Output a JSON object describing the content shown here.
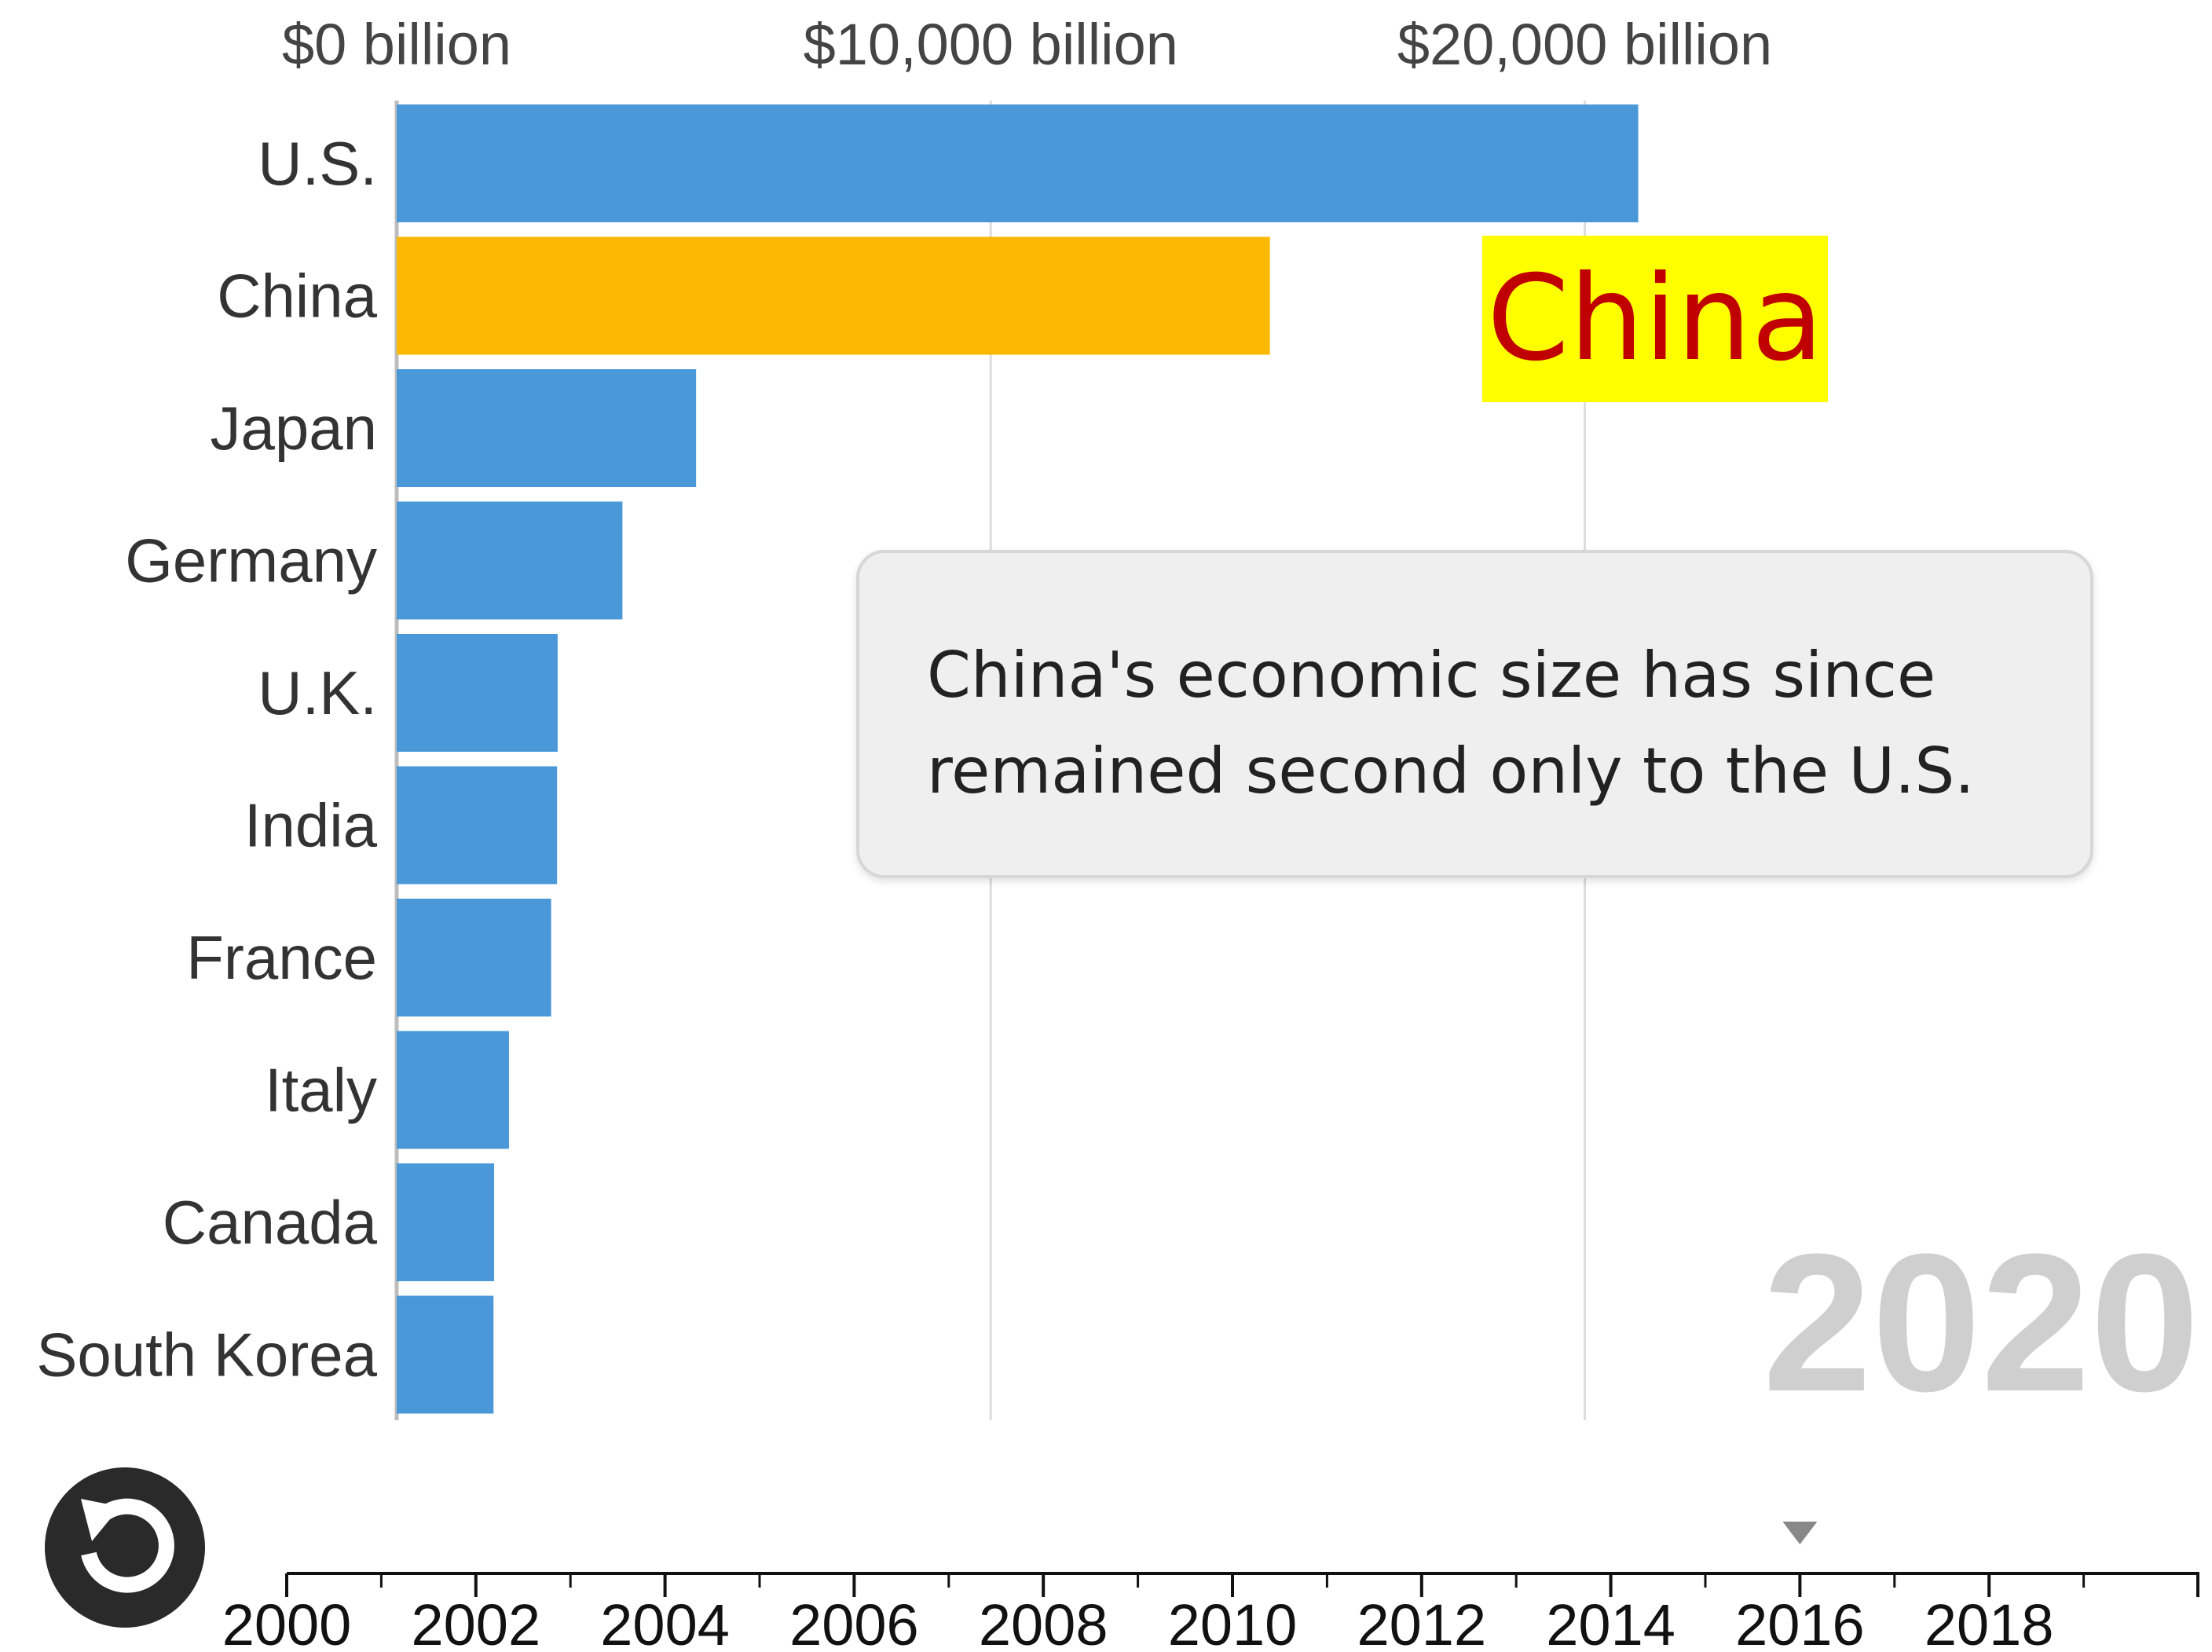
{
  "chart_data": {
    "type": "bar",
    "orientation": "horizontal",
    "categories": [
      "U.S.",
      "China",
      "Japan",
      "Germany",
      "U.K.",
      "India",
      "France",
      "Italy",
      "Canada",
      "South Korea"
    ],
    "values": [
      20900,
      14700,
      5040,
      3800,
      2710,
      2700,
      2600,
      1890,
      1640,
      1630
    ],
    "highlight_category": "China",
    "xlim": [
      0,
      24000
    ],
    "x_ticks": [
      0,
      10000,
      20000
    ],
    "x_tick_labels": [
      "$0 billion",
      "$10,000 billion",
      "$20,000 billion"
    ],
    "grid": true,
    "legend": "none",
    "year": "2020"
  },
  "colors": {
    "bar_default": "#4a98d8",
    "bar_highlight": "#fbb800",
    "highlight_bg": "#ffff00",
    "highlight_text": "#c00000",
    "watermark": "#cfcfcf"
  },
  "highlight_label": "China",
  "annotation": {
    "line1": "China's economic size has since",
    "line2": "remained second only to the U.S."
  },
  "timeline": {
    "labels": [
      "2000",
      "2002",
      "2004",
      "2006",
      "2008",
      "2010",
      "2012",
      "2014",
      "2016",
      "2018"
    ],
    "current_year_marker": "2016"
  },
  "controls": {
    "replay_icon": "replay-icon"
  }
}
